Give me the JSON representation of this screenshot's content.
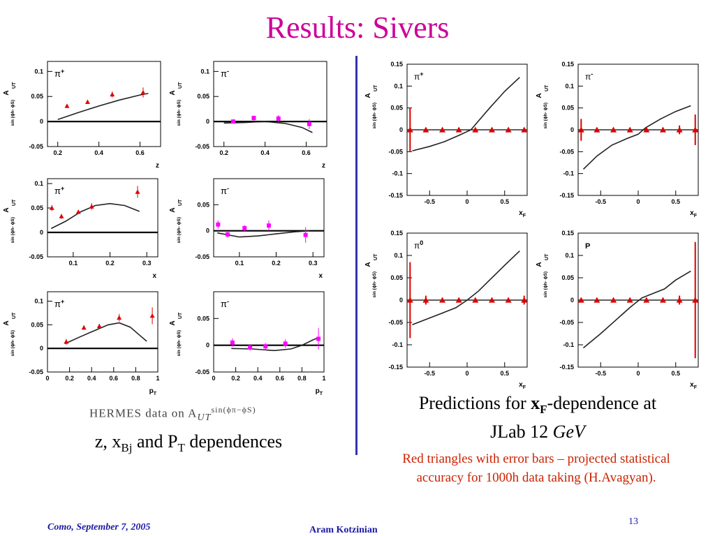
{
  "slide": {
    "title": "Results: Sivers",
    "hermes_text": "HERMES data on A",
    "hermes_sub": "UT",
    "hermes_sup": "sin(ϕπ−ϕS)",
    "left_caption": {
      "a": "z, x",
      "a_sub": "Bj",
      "b": " and P",
      "b_sub": "T",
      "c": " dependences"
    },
    "right_caption": {
      "a": "Predictions for ",
      "x": "x",
      "x_sub": "F",
      "b": "-dependence at",
      "line2a": "JLab 12 ",
      "line2b": "GeV"
    },
    "note": "Red triangles with error bars – projected statistical accuracy for 1000h data taking (H.Avagyan).",
    "footer_left": "Como, September 7,  2005",
    "footer_mid": "Aram Kotzinian",
    "page_number": "13",
    "ylabel_main": "A",
    "ylabel_sup": "sin (ϕh- ϕS)",
    "ylabel_sub": "UT"
  },
  "chart_data": [
    {
      "type": "scatter",
      "particle": "π",
      "charge": "+",
      "xlabel": "z",
      "xlim": [
        0.15,
        0.7
      ],
      "ylim": [
        -0.05,
        0.12
      ],
      "xticks": [
        {
          "v": 0.2,
          "t": "0.2"
        },
        {
          "v": 0.4,
          "t": "0.4"
        },
        {
          "v": 0.6,
          "t": "0.6"
        }
      ],
      "yticks": [
        {
          "v": -0.05,
          "t": "-0.05"
        },
        {
          "v": 0,
          "t": "0"
        },
        {
          "v": 0.05,
          "t": "0.05"
        },
        {
          "v": 0.1,
          "t": "0.1"
        }
      ],
      "marker": "triangle",
      "color": "#dd0000",
      "points": [
        [
          0.245,
          0.031,
          0.004
        ],
        [
          0.345,
          0.039,
          0.004
        ],
        [
          0.465,
          0.054,
          0.006
        ],
        [
          0.615,
          0.058,
          0.01
        ]
      ],
      "curve": [
        [
          0.2,
          0.004
        ],
        [
          0.3,
          0.018
        ],
        [
          0.4,
          0.031
        ],
        [
          0.5,
          0.043
        ],
        [
          0.6,
          0.053
        ],
        [
          0.64,
          0.056
        ]
      ]
    },
    {
      "type": "scatter",
      "particle": "π",
      "charge": "-",
      "xlabel": "z",
      "xlim": [
        0.15,
        0.7
      ],
      "ylim": [
        -0.05,
        0.12
      ],
      "xticks": [
        {
          "v": 0.2,
          "t": "0.2"
        },
        {
          "v": 0.4,
          "t": "0.4"
        },
        {
          "v": 0.6,
          "t": "0.6"
        }
      ],
      "yticks": [
        {
          "v": -0.05,
          "t": "-0.05"
        },
        {
          "v": 0,
          "t": "0"
        },
        {
          "v": 0.05,
          "t": "0.05"
        },
        {
          "v": 0.1,
          "t": "0.1"
        }
      ],
      "marker": "square",
      "color": "#ff00ff",
      "points": [
        [
          0.245,
          0.0,
          0.003
        ],
        [
          0.345,
          0.007,
          0.005
        ],
        [
          0.465,
          0.006,
          0.007
        ],
        [
          0.615,
          -0.005,
          0.01
        ]
      ],
      "curve": [
        [
          0.2,
          -0.003
        ],
        [
          0.3,
          -0.002
        ],
        [
          0.4,
          0.0
        ],
        [
          0.5,
          -0.004
        ],
        [
          0.58,
          -0.012
        ],
        [
          0.63,
          -0.022
        ]
      ]
    },
    {
      "type": "scatter",
      "particle": "π",
      "charge": "+",
      "xlabel": "x",
      "xlim": [
        0.03,
        0.33
      ],
      "ylim": [
        -0.05,
        0.11
      ],
      "xticks": [
        {
          "v": 0.1,
          "t": "0.1"
        },
        {
          "v": 0.2,
          "t": "0.2"
        },
        {
          "v": 0.3,
          "t": "0.3"
        }
      ],
      "yticks": [
        {
          "v": -0.05,
          "t": "-0.05"
        },
        {
          "v": 0,
          "t": "0"
        },
        {
          "v": 0.05,
          "t": "0.05"
        },
        {
          "v": 0.1,
          "t": "0.1"
        }
      ],
      "marker": "triangle",
      "color": "#dd0000",
      "points": [
        [
          0.042,
          0.05,
          0.006
        ],
        [
          0.068,
          0.033,
          0.005
        ],
        [
          0.114,
          0.042,
          0.004
        ],
        [
          0.15,
          0.053,
          0.007
        ],
        [
          0.275,
          0.083,
          0.012
        ]
      ],
      "curve": [
        [
          0.04,
          0.008
        ],
        [
          0.08,
          0.023
        ],
        [
          0.12,
          0.042
        ],
        [
          0.16,
          0.055
        ],
        [
          0.2,
          0.059
        ],
        [
          0.24,
          0.055
        ],
        [
          0.28,
          0.043
        ]
      ]
    },
    {
      "type": "scatter",
      "particle": "π",
      "charge": "-",
      "xlabel": "x",
      "xlim": [
        0.03,
        0.33
      ],
      "ylim": [
        -0.05,
        0.1
      ],
      "xticks": [
        {
          "v": 0.1,
          "t": "0.1"
        },
        {
          "v": 0.2,
          "t": "0.2"
        },
        {
          "v": 0.3,
          "t": "0.3"
        }
      ],
      "yticks": [
        {
          "v": -0.05,
          "t": "-0.05"
        },
        {
          "v": 0,
          "t": "0"
        },
        {
          "v": 0.05,
          "t": "0.05"
        }
      ],
      "marker": "square",
      "color": "#ff00ff",
      "points": [
        [
          0.042,
          0.012,
          0.008
        ],
        [
          0.068,
          -0.007,
          0.006
        ],
        [
          0.114,
          0.005,
          0.006
        ],
        [
          0.18,
          0.01,
          0.01
        ],
        [
          0.28,
          -0.008,
          0.015
        ]
      ],
      "curve": [
        [
          0.04,
          -0.004
        ],
        [
          0.1,
          -0.012
        ],
        [
          0.15,
          -0.01
        ],
        [
          0.2,
          -0.006
        ],
        [
          0.25,
          -0.002
        ],
        [
          0.29,
          0.0
        ]
      ]
    },
    {
      "type": "scatter",
      "particle": "π",
      "charge": "+",
      "xlabel": "p",
      "xlabel_sub": "T",
      "xlim": [
        0,
        1.0
      ],
      "ylim": [
        -0.05,
        0.12
      ],
      "xticks": [
        {
          "v": 0,
          "t": "0"
        },
        {
          "v": 0.2,
          "t": "0.2"
        },
        {
          "v": 0.4,
          "t": "0.4"
        },
        {
          "v": 0.6,
          "t": "0.6"
        },
        {
          "v": 0.8,
          "t": "0.8"
        },
        {
          "v": 1.0,
          "t": "1"
        }
      ],
      "yticks": [
        {
          "v": -0.05,
          "t": "-0.05"
        },
        {
          "v": 0,
          "t": "0"
        },
        {
          "v": 0.05,
          "t": "0.05"
        },
        {
          "v": 0.1,
          "t": "0.1"
        }
      ],
      "marker": "triangle",
      "color": "#dd0000",
      "points": [
        [
          0.17,
          0.014,
          0.006
        ],
        [
          0.33,
          0.044,
          0.005
        ],
        [
          0.47,
          0.047,
          0.005
        ],
        [
          0.65,
          0.065,
          0.008
        ],
        [
          0.95,
          0.069,
          0.018
        ]
      ],
      "curve": [
        [
          0.16,
          0.01
        ],
        [
          0.3,
          0.025
        ],
        [
          0.45,
          0.04
        ],
        [
          0.55,
          0.05
        ],
        [
          0.65,
          0.054
        ],
        [
          0.75,
          0.045
        ],
        [
          0.85,
          0.025
        ],
        [
          0.9,
          0.015
        ]
      ]
    },
    {
      "type": "scatter",
      "particle": "π",
      "charge": "-",
      "xlabel": "p",
      "xlabel_sub": "T",
      "xlim": [
        0,
        1.0
      ],
      "ylim": [
        -0.05,
        0.1
      ],
      "xticks": [
        {
          "v": 0,
          "t": "0"
        },
        {
          "v": 0.2,
          "t": "0.2"
        },
        {
          "v": 0.4,
          "t": "0.4"
        },
        {
          "v": 0.6,
          "t": "0.6"
        },
        {
          "v": 0.8,
          "t": "0.8"
        },
        {
          "v": 1.0,
          "t": "1"
        }
      ],
      "yticks": [
        {
          "v": -0.05,
          "t": "-0.05"
        },
        {
          "v": 0,
          "t": "0"
        },
        {
          "v": 0.05,
          "t": "0.05"
        }
      ],
      "marker": "square",
      "color": "#ff00ff",
      "points": [
        [
          0.17,
          0.005,
          0.008
        ],
        [
          0.33,
          -0.004,
          0.006
        ],
        [
          0.47,
          -0.002,
          0.006
        ],
        [
          0.65,
          0.003,
          0.008
        ],
        [
          0.95,
          0.012,
          0.02
        ]
      ],
      "curve": [
        [
          0.16,
          -0.006
        ],
        [
          0.35,
          -0.007
        ],
        [
          0.55,
          -0.01
        ],
        [
          0.7,
          -0.007
        ],
        [
          0.8,
          0.0
        ],
        [
          0.9,
          0.01
        ],
        [
          0.95,
          0.014
        ]
      ]
    },
    {
      "type": "line",
      "particle": "π",
      "charge": "+",
      "xlabel": "x",
      "xlabel_sub": "F",
      "xlim": [
        -0.8,
        0.8
      ],
      "ylim": [
        -0.15,
        0.15
      ],
      "xticks": [
        {
          "v": -0.5,
          "t": "-0.5"
        },
        {
          "v": 0,
          "t": "0"
        },
        {
          "v": 0.5,
          "t": "0.5"
        }
      ],
      "yticks": [
        {
          "v": -0.15,
          "t": "-0.15"
        },
        {
          "v": -0.1,
          "t": "-0.1"
        },
        {
          "v": -0.05,
          "t": "-0.05"
        },
        {
          "v": 0,
          "t": "0"
        },
        {
          "v": 0.05,
          "t": "0.05"
        },
        {
          "v": 0.1,
          "t": "0.1"
        },
        {
          "v": 0.15,
          "t": "0.15"
        }
      ],
      "marker": "triangle",
      "color": "#dd0000",
      "points": [
        [
          -0.76,
          0.0,
          0.05
        ],
        [
          -0.55,
          0.0,
          0.003
        ],
        [
          -0.33,
          0.0,
          0.002
        ],
        [
          -0.11,
          0.0,
          0.002
        ],
        [
          0.11,
          0.0,
          0.002
        ],
        [
          0.33,
          0.0,
          0.002
        ],
        [
          0.55,
          0.0,
          0.003
        ],
        [
          0.76,
          0.0,
          0.004
        ]
      ],
      "curve": [
        [
          -0.73,
          -0.048
        ],
        [
          -0.5,
          -0.038
        ],
        [
          -0.3,
          -0.027
        ],
        [
          -0.1,
          -0.012
        ],
        [
          0.05,
          0.0
        ],
        [
          0.15,
          0.02
        ],
        [
          0.3,
          0.05
        ],
        [
          0.5,
          0.088
        ],
        [
          0.7,
          0.12
        ]
      ]
    },
    {
      "type": "line",
      "particle": "π",
      "charge": "-",
      "xlabel": "x",
      "xlabel_sub": "F",
      "xlim": [
        -0.8,
        0.8
      ],
      "ylim": [
        -0.15,
        0.15
      ],
      "xticks": [
        {
          "v": -0.5,
          "t": "-0.5"
        },
        {
          "v": 0,
          "t": "0"
        },
        {
          "v": 0.5,
          "t": "0.5"
        }
      ],
      "yticks": [
        {
          "v": -0.15,
          "t": "-0.15"
        },
        {
          "v": -0.1,
          "t": "-0.1"
        },
        {
          "v": -0.05,
          "t": "-0.05"
        },
        {
          "v": 0,
          "t": "0"
        },
        {
          "v": 0.05,
          "t": "0.05"
        },
        {
          "v": 0.1,
          "t": "0.1"
        },
        {
          "v": 0.15,
          "t": "0.15"
        }
      ],
      "marker": "triangle",
      "color": "#dd0000",
      "points": [
        [
          -0.76,
          0.0,
          0.025
        ],
        [
          -0.55,
          0.0,
          0.003
        ],
        [
          -0.33,
          0.0,
          0.002
        ],
        [
          -0.11,
          0.0,
          0.002
        ],
        [
          0.11,
          0.0,
          0.002
        ],
        [
          0.33,
          0.0,
          0.002
        ],
        [
          0.55,
          0.0,
          0.01
        ],
        [
          0.76,
          0.0,
          0.035
        ]
      ],
      "curve": [
        [
          -0.73,
          -0.09
        ],
        [
          -0.55,
          -0.06
        ],
        [
          -0.35,
          -0.035
        ],
        [
          -0.15,
          -0.02
        ],
        [
          0.0,
          -0.01
        ],
        [
          0.1,
          0.005
        ],
        [
          0.3,
          0.025
        ],
        [
          0.5,
          0.042
        ],
        [
          0.7,
          0.055
        ]
      ]
    },
    {
      "type": "line",
      "particle": "π",
      "charge": "0",
      "xlabel": "x",
      "xlabel_sub": "F",
      "xlim": [
        -0.8,
        0.8
      ],
      "ylim": [
        -0.15,
        0.15
      ],
      "xticks": [
        {
          "v": -0.5,
          "t": "-0.5"
        },
        {
          "v": 0,
          "t": "0"
        },
        {
          "v": 0.5,
          "t": "0.5"
        }
      ],
      "yticks": [
        {
          "v": -0.15,
          "t": "-0.15"
        },
        {
          "v": -0.1,
          "t": "-0.1"
        },
        {
          "v": -0.05,
          "t": "-0.05"
        },
        {
          "v": 0,
          "t": "0"
        },
        {
          "v": 0.05,
          "t": "0.05"
        },
        {
          "v": 0.1,
          "t": "0.1"
        },
        {
          "v": 0.15,
          "t": "0.15"
        }
      ],
      "marker": "triangle",
      "color": "#dd0000",
      "points": [
        [
          -0.76,
          0.0,
          0.085
        ],
        [
          -0.55,
          0.0,
          0.01
        ],
        [
          -0.33,
          0.0,
          0.002
        ],
        [
          -0.11,
          0.0,
          0.002
        ],
        [
          0.11,
          0.0,
          0.002
        ],
        [
          0.33,
          0.0,
          0.002
        ],
        [
          0.55,
          0.0,
          0.003
        ],
        [
          0.76,
          0.0,
          0.01
        ]
      ],
      "curve": [
        [
          -0.73,
          -0.055
        ],
        [
          -0.5,
          -0.04
        ],
        [
          -0.3,
          -0.027
        ],
        [
          -0.15,
          -0.017
        ],
        [
          0.0,
          0.0
        ],
        [
          0.15,
          0.02
        ],
        [
          0.3,
          0.045
        ],
        [
          0.5,
          0.078
        ],
        [
          0.7,
          0.11
        ]
      ]
    },
    {
      "type": "line",
      "particle": "P",
      "charge": "",
      "xlabel": "x",
      "xlabel_sub": "F",
      "xlim": [
        -0.8,
        0.8
      ],
      "ylim": [
        -0.15,
        0.15
      ],
      "xticks": [
        {
          "v": -0.5,
          "t": "-0.5"
        },
        {
          "v": 0,
          "t": "0"
        },
        {
          "v": 0.5,
          "t": "0.5"
        }
      ],
      "yticks": [
        {
          "v": -0.15,
          "t": "-0.15"
        },
        {
          "v": -0.1,
          "t": "-0.1"
        },
        {
          "v": -0.05,
          "t": "-0.05"
        },
        {
          "v": 0,
          "t": "0"
        },
        {
          "v": 0.05,
          "t": "0.05"
        },
        {
          "v": 0.1,
          "t": "0.1"
        },
        {
          "v": 0.15,
          "t": "0.15"
        }
      ],
      "marker": "triangle",
      "color": "#dd0000",
      "points": [
        [
          -0.76,
          0.0,
          0.003
        ],
        [
          -0.55,
          0.0,
          0.003
        ],
        [
          -0.33,
          0.0,
          0.002
        ],
        [
          -0.11,
          0.0,
          0.002
        ],
        [
          0.11,
          0.0,
          0.002
        ],
        [
          0.33,
          0.0,
          0.003
        ],
        [
          0.55,
          0.0,
          0.01
        ],
        [
          0.76,
          0.0,
          0.13
        ]
      ],
      "curve": [
        [
          -0.73,
          -0.107
        ],
        [
          -0.5,
          -0.075
        ],
        [
          -0.3,
          -0.045
        ],
        [
          -0.1,
          -0.015
        ],
        [
          0.05,
          0.005
        ],
        [
          0.2,
          0.015
        ],
        [
          0.35,
          0.025
        ],
        [
          0.5,
          0.045
        ],
        [
          0.7,
          0.065
        ]
      ]
    }
  ]
}
